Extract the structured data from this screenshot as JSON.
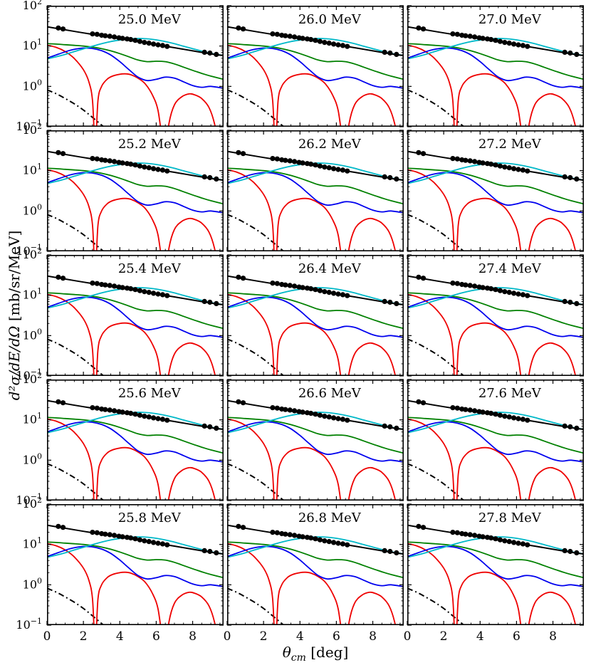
{
  "chart_data": {
    "type": "line",
    "title": "",
    "ylabel": "d2σ/dE/dΩ [mb/sr/MeV]",
    "ylabel_math": "d²σ/dE/dΩ",
    "ylabel_units": " [mb/sr/MeV]",
    "xlabel": "θ_cm [deg]",
    "xlabel_symbol": "θ",
    "xlabel_sub": "cm",
    "xlabel_rest": " [deg]",
    "y_scale": "log",
    "x_range": [
      0,
      9.7
    ],
    "y_range": [
      0.1,
      100
    ],
    "x_ticks": [
      0,
      2,
      4,
      6,
      8
    ],
    "x_tick_labels": [
      "0",
      "2",
      "4",
      "6",
      "8"
    ],
    "y_ticks": [
      0.1,
      1,
      10,
      100
    ],
    "y_tick_exponents": [
      -1,
      0,
      1,
      2
    ],
    "grid": {
      "rows": 5,
      "cols": 3,
      "tick_direction": "in",
      "gridlines": false,
      "legend": false
    },
    "panels": [
      {
        "label": "25.0 MeV"
      },
      {
        "label": "26.0 MeV"
      },
      {
        "label": "27.0 MeV"
      },
      {
        "label": "25.2 MeV"
      },
      {
        "label": "26.2 MeV"
      },
      {
        "label": "27.2 MeV"
      },
      {
        "label": "25.4 MeV"
      },
      {
        "label": "26.4 MeV"
      },
      {
        "label": "27.4 MeV"
      },
      {
        "label": "25.6 MeV"
      },
      {
        "label": "26.6 MeV"
      },
      {
        "label": "27.6 MeV"
      },
      {
        "label": "25.8 MeV"
      },
      {
        "label": "26.8 MeV"
      },
      {
        "label": "27.8 MeV"
      }
    ],
    "series": [
      {
        "name": "dash-dot-component",
        "color": "#000000",
        "dash": "8 4 2 4",
        "width": 2.0,
        "x": [
          0,
          0.5,
          1,
          1.5,
          2,
          2.5,
          3,
          3.3,
          3.6
        ],
        "y": [
          0.82,
          0.66,
          0.5,
          0.37,
          0.26,
          0.17,
          0.11,
          0.085,
          0.06
        ]
      },
      {
        "name": "red-component",
        "color": "#ee0000",
        "dash": "",
        "width": 1.8,
        "x": [
          0,
          0.5,
          1,
          1.5,
          2,
          2.3,
          2.5,
          2.65,
          2.8,
          3,
          3.3,
          3.6,
          4,
          4.3,
          4.6,
          5,
          5.4,
          5.8,
          6.1,
          6.35,
          6.5,
          6.7,
          7,
          7.4,
          7.8,
          8.1,
          8.5,
          8.9,
          9.2,
          9.45,
          9.7
        ],
        "y": [
          10.5,
          9.3,
          7.3,
          4.9,
          2.6,
          1.3,
          0.45,
          0.03,
          0.45,
          1.0,
          1.5,
          1.8,
          2.0,
          2.05,
          1.95,
          1.6,
          1.15,
          0.6,
          0.25,
          0.04,
          0.02,
          0.12,
          0.35,
          0.55,
          0.65,
          0.62,
          0.5,
          0.3,
          0.12,
          0.03,
          0.02
        ]
      },
      {
        "name": "blue-component",
        "color": "#0000ee",
        "dash": "",
        "width": 1.8,
        "x": [
          0,
          0.5,
          1,
          1.5,
          2,
          2.5,
          3,
          3.5,
          4,
          4.5,
          5,
          5.5,
          6,
          6.5,
          7,
          7.5,
          8,
          8.5,
          9,
          9.7
        ],
        "y": [
          5.0,
          6.0,
          7.2,
          8.3,
          8.9,
          8.7,
          7.7,
          6.0,
          4.1,
          2.6,
          1.7,
          1.4,
          1.5,
          1.7,
          1.6,
          1.3,
          1.05,
          0.95,
          1.0,
          0.9
        ]
      },
      {
        "name": "green-component",
        "color": "#008000",
        "dash": "",
        "width": 1.8,
        "x": [
          0,
          0.5,
          1,
          1.5,
          2,
          2.5,
          3,
          3.5,
          4,
          4.5,
          5,
          5.5,
          6,
          6.5,
          7,
          7.5,
          8,
          8.5,
          9,
          9.7
        ],
        "y": [
          11.5,
          11.2,
          10.8,
          10.4,
          10.0,
          9.4,
          8.6,
          7.6,
          6.5,
          5.4,
          4.5,
          4.1,
          4.2,
          4.1,
          3.6,
          3.0,
          2.5,
          2.1,
          1.8,
          1.5
        ]
      },
      {
        "name": "cyan-component",
        "color": "#00b8c8",
        "dash": "",
        "width": 1.8,
        "x": [
          0,
          0.5,
          1,
          1.5,
          2,
          2.5,
          3,
          3.5,
          4,
          4.5,
          5,
          5.5,
          6,
          6.5,
          7,
          7.5,
          8,
          8.5,
          9,
          9.7
        ],
        "y": [
          4.8,
          5.4,
          6.2,
          7.3,
          8.5,
          9.9,
          11.4,
          12.9,
          14.1,
          15.0,
          15.4,
          15.1,
          14.2,
          12.9,
          11.4,
          9.9,
          8.6,
          7.5,
          6.6,
          5.8
        ]
      },
      {
        "name": "total-fit",
        "color": "#000000",
        "dash": "",
        "width": 2.0,
        "x": [
          0,
          1,
          2,
          3,
          4,
          5,
          6,
          7,
          8,
          9,
          9.7
        ],
        "y": [
          30,
          25.2,
          21.2,
          17.9,
          15.1,
          12.8,
          10.8,
          9.1,
          7.6,
          6.4,
          5.8
        ]
      }
    ],
    "data_points": {
      "name": "experimental-data",
      "marker": "filled-circle",
      "color": "#000000",
      "x": [
        0.62,
        0.88,
        2.5,
        2.75,
        3.0,
        3.2,
        3.45,
        3.7,
        3.95,
        4.15,
        4.4,
        4.6,
        4.85,
        5.1,
        5.35,
        5.6,
        5.85,
        6.1,
        6.35,
        6.6,
        8.65,
        8.95,
        9.3
      ],
      "y": [
        28,
        26.5,
        20,
        19.5,
        18.5,
        18,
        17.5,
        16.8,
        16,
        15.5,
        15,
        14.5,
        13.8,
        13,
        12.3,
        11.8,
        11.2,
        10.7,
        10.3,
        9.8,
        7.0,
        6.7,
        6.2
      ]
    }
  }
}
